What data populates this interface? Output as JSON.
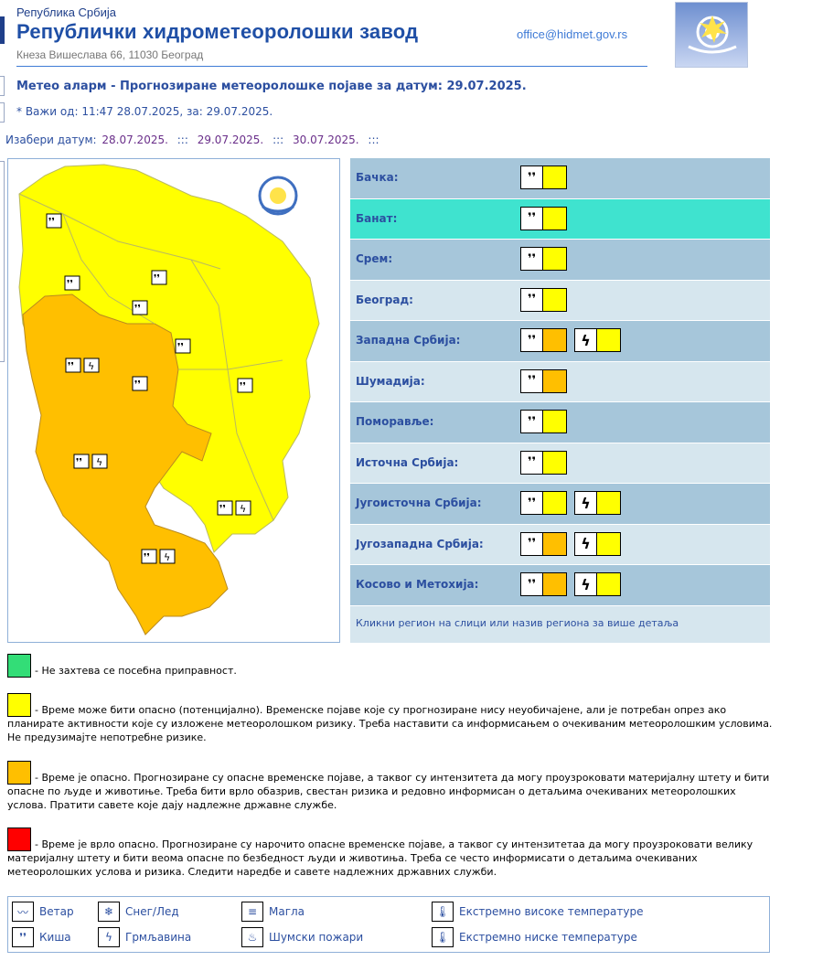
{
  "header": {
    "republic": "Република Србија",
    "title": "Републички хидрометеоролошки завод",
    "address": "Кнеза Вишеслава 66, 11030 Београд",
    "email": "office@hidmet.gov.rs"
  },
  "alarm_title": "Метео аларм - Прогнозиране метеоролошке појаве за датум:  29.07.2025.",
  "valid": "* Важи од: 11:47 28.07.2025, за: 29.07.2025.",
  "choose": {
    "label": "Изабери датум:",
    "dates": [
      "28.07.2025.",
      "29.07.2025.",
      "30.07.2025."
    ],
    "separator": ":::"
  },
  "colors": {
    "yellow": "#ffff00",
    "orange": "#ffbf00",
    "red": "#ff0000",
    "green": "#33dd77",
    "selected": "#3fe3cf"
  },
  "regions": [
    {
      "name": "Бачка:",
      "alerts": [
        {
          "type": "rain-icon",
          "level": "yellow"
        }
      ]
    },
    {
      "name": "Банат:",
      "alerts": [
        {
          "type": "rain-icon",
          "level": "yellow"
        }
      ],
      "selected": true
    },
    {
      "name": "Срем:",
      "alerts": [
        {
          "type": "rain-icon",
          "level": "yellow"
        }
      ]
    },
    {
      "name": "Београд:",
      "alerts": [
        {
          "type": "rain-icon",
          "level": "yellow"
        }
      ]
    },
    {
      "name": "Западна Србија:",
      "alerts": [
        {
          "type": "rain-icon",
          "level": "orange"
        },
        {
          "type": "thunder-icon",
          "level": "yellow"
        }
      ]
    },
    {
      "name": "Шумадија:",
      "alerts": [
        {
          "type": "rain-icon",
          "level": "orange"
        }
      ]
    },
    {
      "name": "Поморавље:",
      "alerts": [
        {
          "type": "rain-icon",
          "level": "yellow"
        }
      ]
    },
    {
      "name": "Источна Србија:",
      "alerts": [
        {
          "type": "rain-icon",
          "level": "yellow"
        }
      ]
    },
    {
      "name": "Југоисточна Србија:",
      "alerts": [
        {
          "type": "rain-icon",
          "level": "yellow"
        },
        {
          "type": "thunder-icon",
          "level": "yellow"
        }
      ]
    },
    {
      "name": "Југозападна Србија:",
      "alerts": [
        {
          "type": "rain-icon",
          "level": "orange"
        },
        {
          "type": "thunder-icon",
          "level": "yellow"
        }
      ]
    },
    {
      "name": "Косово и Метохија:",
      "alerts": [
        {
          "type": "rain-icon",
          "level": "orange"
        },
        {
          "type": "thunder-icon",
          "level": "yellow"
        }
      ]
    }
  ],
  "regions_footer": "Кликни регион на слици или назив региона за више детаља",
  "legend": [
    {
      "level": "green",
      "text": "- Не захтева се посебна приправност."
    },
    {
      "level": "yellow",
      "text": "- Време може бити опасно (потенцијално). Временске појаве које су прогнозиране нису неуобичајене, али је потребан опрез ако планирате активности које су изложене метеоролошком ризику. Треба наставити са информисањем о очекиваним метеоролошким условима. Не предузимајте непотребне ризике."
    },
    {
      "level": "orange",
      "text": "- Време је опасно. Прогнозиране су опасне временске појаве, а таквог су интензитета да могу проузроковати материјалну штету и бити опасне по људе и животиње. Треба бити врло обазрив, свестан ризика и редовно информисан о детаљима очекиваних метеоролошких услова. Пратити савете које дају надлежне државне службе."
    },
    {
      "level": "red",
      "text": "- Време је врло опасно. Прогнозиране су нарочито опасне временске појаве, а таквог су интензитетаа да могу проузроковати велику материјалну штету и бити веома опасне по безбедност људи и животиња. Треба се често информисати о детаљима очекиваних метеоролошких услова и ризика. Следити наредбе и савете надлежних државних служби."
    }
  ],
  "types": [
    {
      "icon": "wind-icon",
      "label": "Ветар"
    },
    {
      "icon": "snow-ice-icon",
      "label": "Снег/Лед"
    },
    {
      "icon": "fog-icon",
      "label": "Магла"
    },
    {
      "icon": "high-temp-icon",
      "label": "Екстремно високе температуре"
    },
    {
      "icon": "rain-icon",
      "label": "Киша"
    },
    {
      "icon": "thunder-icon",
      "label": "Грмљавина"
    },
    {
      "icon": "forest-fire-icon",
      "label": "Шумски пожари"
    },
    {
      "icon": "low-temp-icon",
      "label": "Екстремно ниске температуре"
    }
  ]
}
